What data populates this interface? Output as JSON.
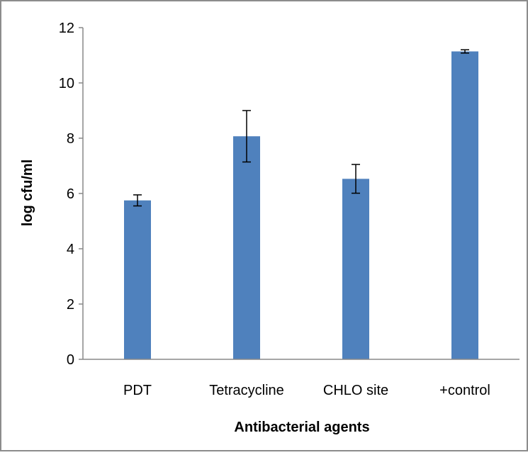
{
  "chart_data": {
    "type": "bar",
    "title": "",
    "xlabel": "Antibacterial agents",
    "ylabel": "log cfu/ml",
    "categories": [
      "PDT",
      "Tetracycline",
      "CHLO site",
      "+control"
    ],
    "values": [
      5.75,
      8.07,
      6.53,
      11.14
    ],
    "error": [
      0.2,
      0.93,
      0.52,
      0.06
    ],
    "ylim": [
      0,
      12
    ],
    "yticks": [
      "0",
      "2",
      "4",
      "6",
      "8",
      "10",
      "12"
    ],
    "grid": false,
    "legend": "none",
    "colors": {
      "bar": "#4F81BD",
      "axis": "#888888",
      "frame": "#8C8C8C",
      "error_bar": "#000000"
    }
  }
}
